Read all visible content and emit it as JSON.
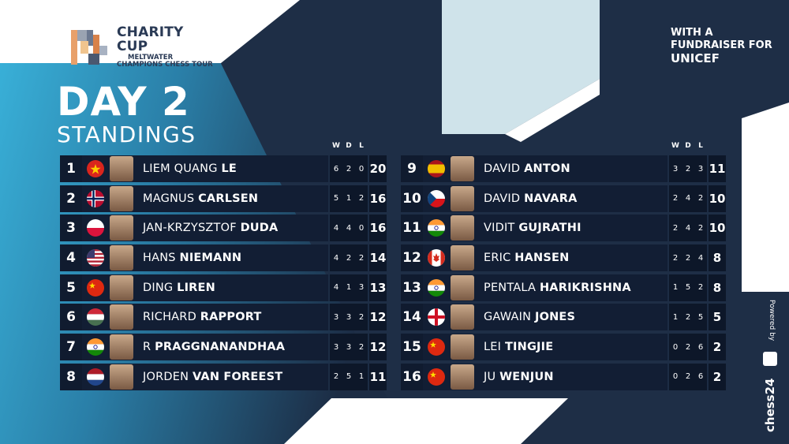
{
  "branding": {
    "title": "CHARITY CUP",
    "subtitle1": "MELTWATER",
    "subtitle2": "CHAMPIONS CHESS TOUR",
    "fundraiser_line1": "WITH A",
    "fundraiser_line2": "FUNDRAISER FOR",
    "fundraiser_line3": "UNICEF",
    "powered_by": "Powered by",
    "sponsor": "chess24"
  },
  "heading": {
    "day": "DAY 2",
    "subtitle": "STANDINGS"
  },
  "headers": {
    "w": "W",
    "d": "D",
    "l": "L"
  },
  "left": [
    {
      "rank": "1",
      "first": "LIEM QUANG ",
      "last": "LE",
      "w": "6",
      "d": "2",
      "l": "0",
      "pts": "20",
      "flag": "vietnam-flag-icon"
    },
    {
      "rank": "2",
      "first": "MAGNUS ",
      "last": "CARLSEN",
      "w": "5",
      "d": "1",
      "l": "2",
      "pts": "16",
      "flag": "norway-flag-icon"
    },
    {
      "rank": "3",
      "first": "JAN-KRZYSZTOF ",
      "last": "DUDA",
      "w": "4",
      "d": "4",
      "l": "0",
      "pts": "16",
      "flag": "poland-flag-icon"
    },
    {
      "rank": "4",
      "first": "HANS ",
      "last": "NIEMANN",
      "w": "4",
      "d": "2",
      "l": "2",
      "pts": "14",
      "flag": "usa-flag-icon"
    },
    {
      "rank": "5",
      "first": "DING ",
      "last": "LIREN",
      "w": "4",
      "d": "1",
      "l": "3",
      "pts": "13",
      "flag": "china-flag-icon"
    },
    {
      "rank": "6",
      "first": "RICHARD ",
      "last": "RAPPORT",
      "w": "3",
      "d": "3",
      "l": "2",
      "pts": "12",
      "flag": "hungary-flag-icon"
    },
    {
      "rank": "7",
      "first": "R ",
      "last": "PRAGGNANANDHAA",
      "w": "3",
      "d": "3",
      "l": "2",
      "pts": "12",
      "flag": "india-flag-icon"
    },
    {
      "rank": "8",
      "first": "JORDEN ",
      "last": "VAN FOREEST",
      "w": "2",
      "d": "5",
      "l": "1",
      "pts": "11",
      "flag": "netherlands-flag-icon"
    }
  ],
  "right": [
    {
      "rank": "9",
      "first": "DAVID ",
      "last": "ANTON",
      "w": "3",
      "d": "2",
      "l": "3",
      "pts": "11",
      "flag": "spain-flag-icon"
    },
    {
      "rank": "10",
      "first": "DAVID ",
      "last": "NAVARA",
      "w": "2",
      "d": "4",
      "l": "2",
      "pts": "10",
      "flag": "czech-flag-icon"
    },
    {
      "rank": "11",
      "first": "VIDIT ",
      "last": "GUJRATHI",
      "w": "2",
      "d": "4",
      "l": "2",
      "pts": "10",
      "flag": "india-flag-icon"
    },
    {
      "rank": "12",
      "first": "ERIC ",
      "last": "HANSEN",
      "w": "2",
      "d": "2",
      "l": "4",
      "pts": "8",
      "flag": "canada-flag-icon"
    },
    {
      "rank": "13",
      "first": "PENTALA ",
      "last": "HARIKRISHNA",
      "w": "1",
      "d": "5",
      "l": "2",
      "pts": "8",
      "flag": "india-flag-icon"
    },
    {
      "rank": "14",
      "first": "GAWAIN ",
      "last": "JONES",
      "w": "1",
      "d": "2",
      "l": "5",
      "pts": "5",
      "flag": "england-flag-icon"
    },
    {
      "rank": "15",
      "first": "LEI ",
      "last": "TINGJIE",
      "w": "0",
      "d": "2",
      "l": "6",
      "pts": "2",
      "flag": "china-flag-icon"
    },
    {
      "rank": "16",
      "first": "JU ",
      "last": "WENJUN",
      "w": "0",
      "d": "2",
      "l": "6",
      "pts": "2",
      "flag": "china-flag-icon"
    }
  ],
  "colors": {
    "cyan": "#3ab4dc",
    "navy": "#1c2c44",
    "row": "#121e34",
    "rank_bg": "#101b2f",
    "logo_text": "#2a3a55"
  }
}
